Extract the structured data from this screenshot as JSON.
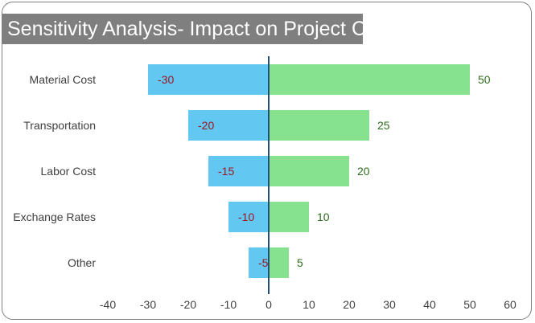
{
  "chart_data": {
    "type": "bar",
    "orientation": "horizontal",
    "title": "Sensitivity Analysis- Impact on Project Cost",
    "categories": [
      "Material Cost",
      "Transportation",
      "Labor Cost",
      "Exchange Rates",
      "Other"
    ],
    "series": [
      {
        "values": [
          -30,
          -20,
          -15,
          -10,
          -5
        ],
        "color": "#62c8f2",
        "label_color": "#a0141e"
      },
      {
        "values": [
          50,
          25,
          20,
          10,
          5
        ],
        "color": "#86e28e",
        "label_color": "#2e6b1e"
      }
    ],
    "xlim": [
      -40,
      60
    ],
    "xticks": [
      -40,
      -30,
      -20,
      -10,
      0,
      10,
      20,
      30,
      40,
      50,
      60
    ],
    "grid": false,
    "legend": "none",
    "axis_color": "#1f4e79"
  }
}
